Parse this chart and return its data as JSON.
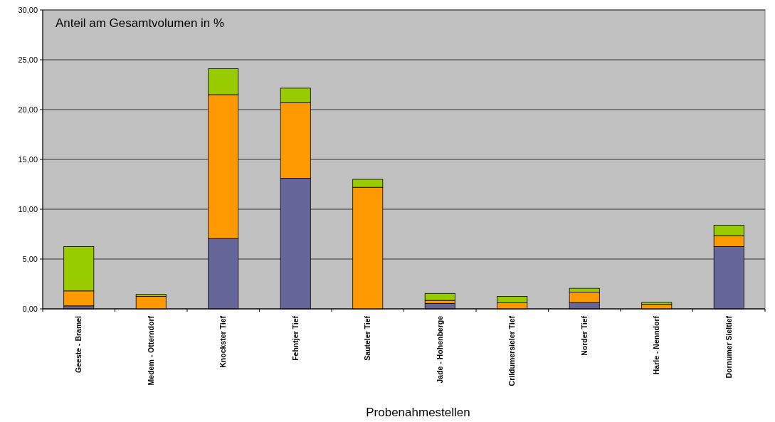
{
  "chart_data": {
    "type": "bar",
    "stacked": true,
    "title": "Anteil am Gesamtvolumen in %",
    "xlabel": "Probenahmestellen",
    "categories": [
      "Geeste - Bramel",
      "Medem - Otterndorf",
      "Knockster Tief",
      "Fehntjer Tief",
      "Sauteler Tief",
      "Jade - Hohenberge",
      "Crildumersieler Tief",
      "Norder Tief",
      "Harle - Nenndorf",
      "Dornumer Sieltief"
    ],
    "series": [
      {
        "color": "#666699",
        "values": [
          0.3,
          null,
          7.05,
          13.1,
          0,
          0.55,
          null,
          0.63,
          null,
          6.25
        ]
      },
      {
        "color": "#ff9900",
        "values": [
          1.5,
          1.25,
          14.45,
          7.6,
          12.2,
          0.3,
          0.6,
          1.05,
          0.45,
          1.1
        ]
      },
      {
        "color": "#99cc00",
        "values": [
          4.45,
          0.2,
          2.6,
          1.45,
          0.8,
          0.7,
          0.65,
          0.38,
          0.2,
          1.05
        ]
      }
    ],
    "ylim": [
      0,
      30
    ],
    "yticks": [
      {
        "value": 0,
        "label": "0,00"
      },
      {
        "value": 5,
        "label": "5,00"
      },
      {
        "value": 10,
        "label": "10,00"
      },
      {
        "value": 15,
        "label": "15,00"
      },
      {
        "value": 20,
        "label": "20,00"
      },
      {
        "value": 25,
        "label": "25,00"
      },
      {
        "value": 30,
        "label": "30,00"
      }
    ],
    "grid": "y"
  }
}
